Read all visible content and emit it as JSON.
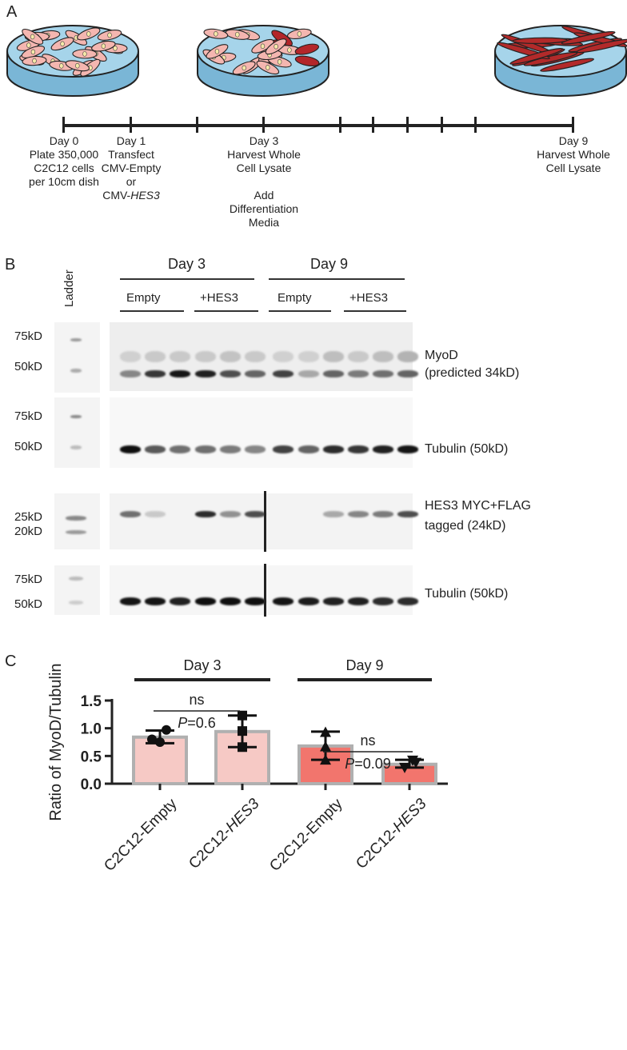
{
  "panels": {
    "a": "A",
    "b": "B",
    "c": "C"
  },
  "timeline": [
    {
      "day": "Day 0",
      "lines": [
        "Plate 350,000",
        "C2C12 cells",
        "per 10cm dish"
      ]
    },
    {
      "day": "Day 1",
      "lines": [
        "Transfect",
        "CMV-Empty",
        "or"
      ],
      "last_pre": "CMV-",
      "last_italic": "HES3"
    },
    {
      "day": "Day 3",
      "lines": [
        "Harvest Whole",
        "Cell Lysate"
      ],
      "extra": [
        "Add",
        "Differentiation",
        "Media"
      ]
    },
    {
      "day": "Day 9",
      "lines": [
        "Harvest Whole",
        "Cell Lysate"
      ]
    }
  ],
  "blot": {
    "ladder": "Ladder",
    "day3": "Day 3",
    "day9": "Day 9",
    "empty": "Empty",
    "hes3": "+HES3",
    "markers": {
      "m75": "75kD",
      "m50": "50kD",
      "m25": "25kD",
      "m20": "20kD"
    },
    "myod": [
      "MyoD",
      "(predicted 34kD)"
    ],
    "tubulin": "Tubulin (50kD)",
    "hes3_label": [
      "HES3 MYC+FLAG",
      "tagged (24kD)"
    ]
  },
  "chart_data": {
    "type": "bar",
    "ylabel": "Ratio of MyoD/Tubulin",
    "ylim": [
      0,
      1.5
    ],
    "yticks": [
      "0.0",
      "0.5",
      "1.0",
      "1.5"
    ],
    "groups": [
      "Day 3",
      "Day 9"
    ],
    "categories": [
      {
        "pre": "C2C12-",
        "main": "Empty",
        "italic": false
      },
      {
        "pre": "C2C12-",
        "main": "HES3",
        "italic": true
      },
      {
        "pre": "C2C12-",
        "main": "Empty",
        "italic": false
      },
      {
        "pre": "C2C12-",
        "main": "HES3",
        "italic": true
      }
    ],
    "values": [
      0.84,
      0.94,
      0.68,
      0.35
    ],
    "err_low": [
      0.73,
      0.66,
      0.43,
      0.29
    ],
    "err_high": [
      0.96,
      1.23,
      0.94,
      0.43
    ],
    "points": [
      [
        0.97,
        0.8,
        0.75
      ],
      [
        1.23,
        0.95,
        0.66
      ],
      [
        0.93,
        0.43,
        0.67
      ],
      [
        0.42,
        0.29,
        0.38
      ]
    ],
    "markers": [
      "circle",
      "square",
      "triangle-up",
      "triangle-down"
    ],
    "bar_colors": [
      "#f6c9c5",
      "#f6c9c5",
      "#f2756d",
      "#f2756d"
    ],
    "stats": [
      {
        "label": "ns",
        "p_italic": "P",
        "p_value": "=0.6"
      },
      {
        "label": "ns",
        "p_italic": "P",
        "p_value": "=0.09"
      }
    ]
  }
}
